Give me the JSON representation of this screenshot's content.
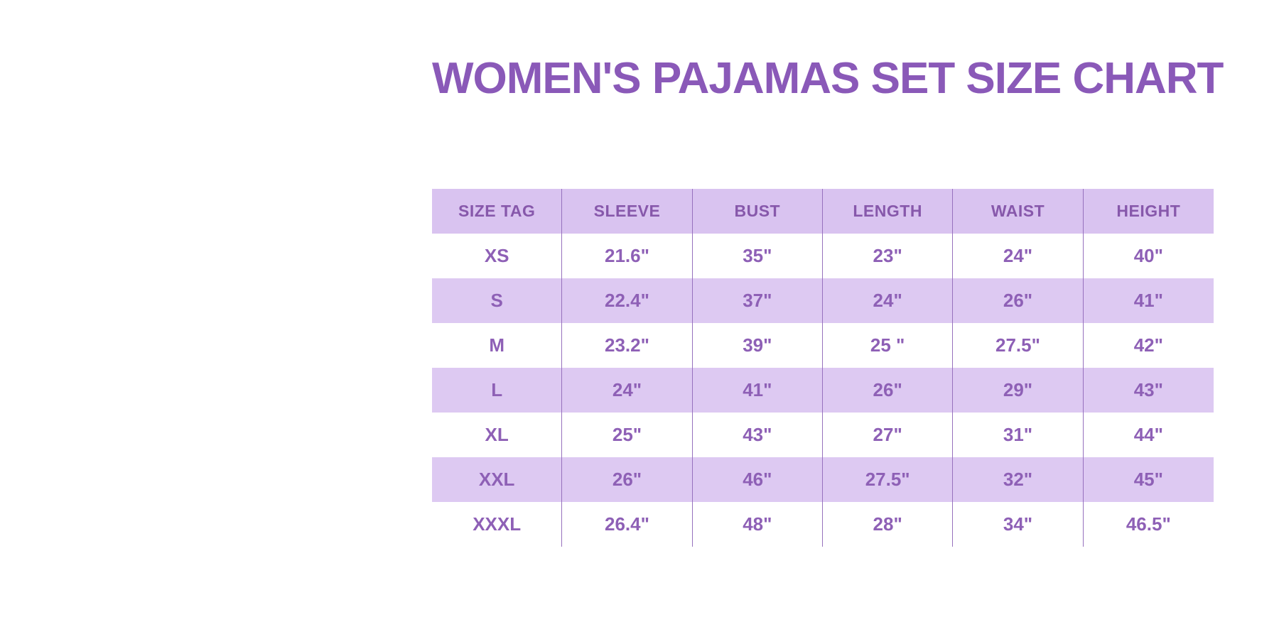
{
  "colors": {
    "page_bg": "#ffffff",
    "title_text": "#8a59b8",
    "header_bg": "#d9c3f0",
    "stripe_bg": "#ddc9f2",
    "divider": "#9671bd",
    "header_text": "#8758ab",
    "data_text": "#8e60b6"
  },
  "title": {
    "text": "WOMEN'S PAJAMAS SET SIZE CHART"
  },
  "table": {
    "columns": [
      "SIZE TAG",
      "SLEEVE",
      "BUST",
      "LENGTH",
      "WAIST",
      "HEIGHT"
    ],
    "rows": [
      {
        "size": "XS",
        "sleeve": "21.6\"",
        "bust": "35\"",
        "length": "23\"",
        "waist": "24\"",
        "height": "40\""
      },
      {
        "size": "S",
        "sleeve": "22.4\"",
        "bust": "37\"",
        "length": "24\"",
        "waist": "26\"",
        "height": "41\""
      },
      {
        "size": "M",
        "sleeve": "23.2\"",
        "bust": "39\"",
        "length": "25 \"",
        "waist": "27.5\"",
        "height": "42\""
      },
      {
        "size": "L",
        "sleeve": "24\"",
        "bust": "41\"",
        "length": "26\"",
        "waist": "29\"",
        "height": "43\""
      },
      {
        "size": "XL",
        "sleeve": "25\"",
        "bust": "43\"",
        "length": "27\"",
        "waist": "31\"",
        "height": "44\""
      },
      {
        "size": "XXL",
        "sleeve": "26\"",
        "bust": "46\"",
        "length": "27.5\"",
        "waist": "32\"",
        "height": "45\""
      },
      {
        "size": "XXXL",
        "sleeve": "26.4\"",
        "bust": "48\"",
        "length": "28\"",
        "waist": "34\"",
        "height": "46.5\""
      }
    ]
  },
  "chart_data": {
    "type": "table",
    "title": "WOMEN'S PAJAMAS SET SIZE CHART",
    "columns": [
      "SIZE TAG",
      "SLEEVE",
      "BUST",
      "LENGTH",
      "WAIST",
      "HEIGHT"
    ],
    "rows": [
      [
        "XS",
        "21.6\"",
        "35\"",
        "23\"",
        "24\"",
        "40\""
      ],
      [
        "S",
        "22.4\"",
        "37\"",
        "24\"",
        "26\"",
        "41\""
      ],
      [
        "M",
        "23.2\"",
        "39\"",
        "25 \"",
        "27.5\"",
        "42\""
      ],
      [
        "L",
        "24\"",
        "41\"",
        "26\"",
        "29\"",
        "43\""
      ],
      [
        "XL",
        "25\"",
        "43\"",
        "27\"",
        "31\"",
        "44\""
      ],
      [
        "XXL",
        "26\"",
        "46\"",
        "27.5\"",
        "32\"",
        "45\""
      ],
      [
        "XXXL",
        "26.4\"",
        "48\"",
        "28\"",
        "34\"",
        "46.5\""
      ]
    ],
    "units": "inches",
    "layout": "header row + 7 size rows, alternating lavender stripes, internal vertical dividers only"
  }
}
